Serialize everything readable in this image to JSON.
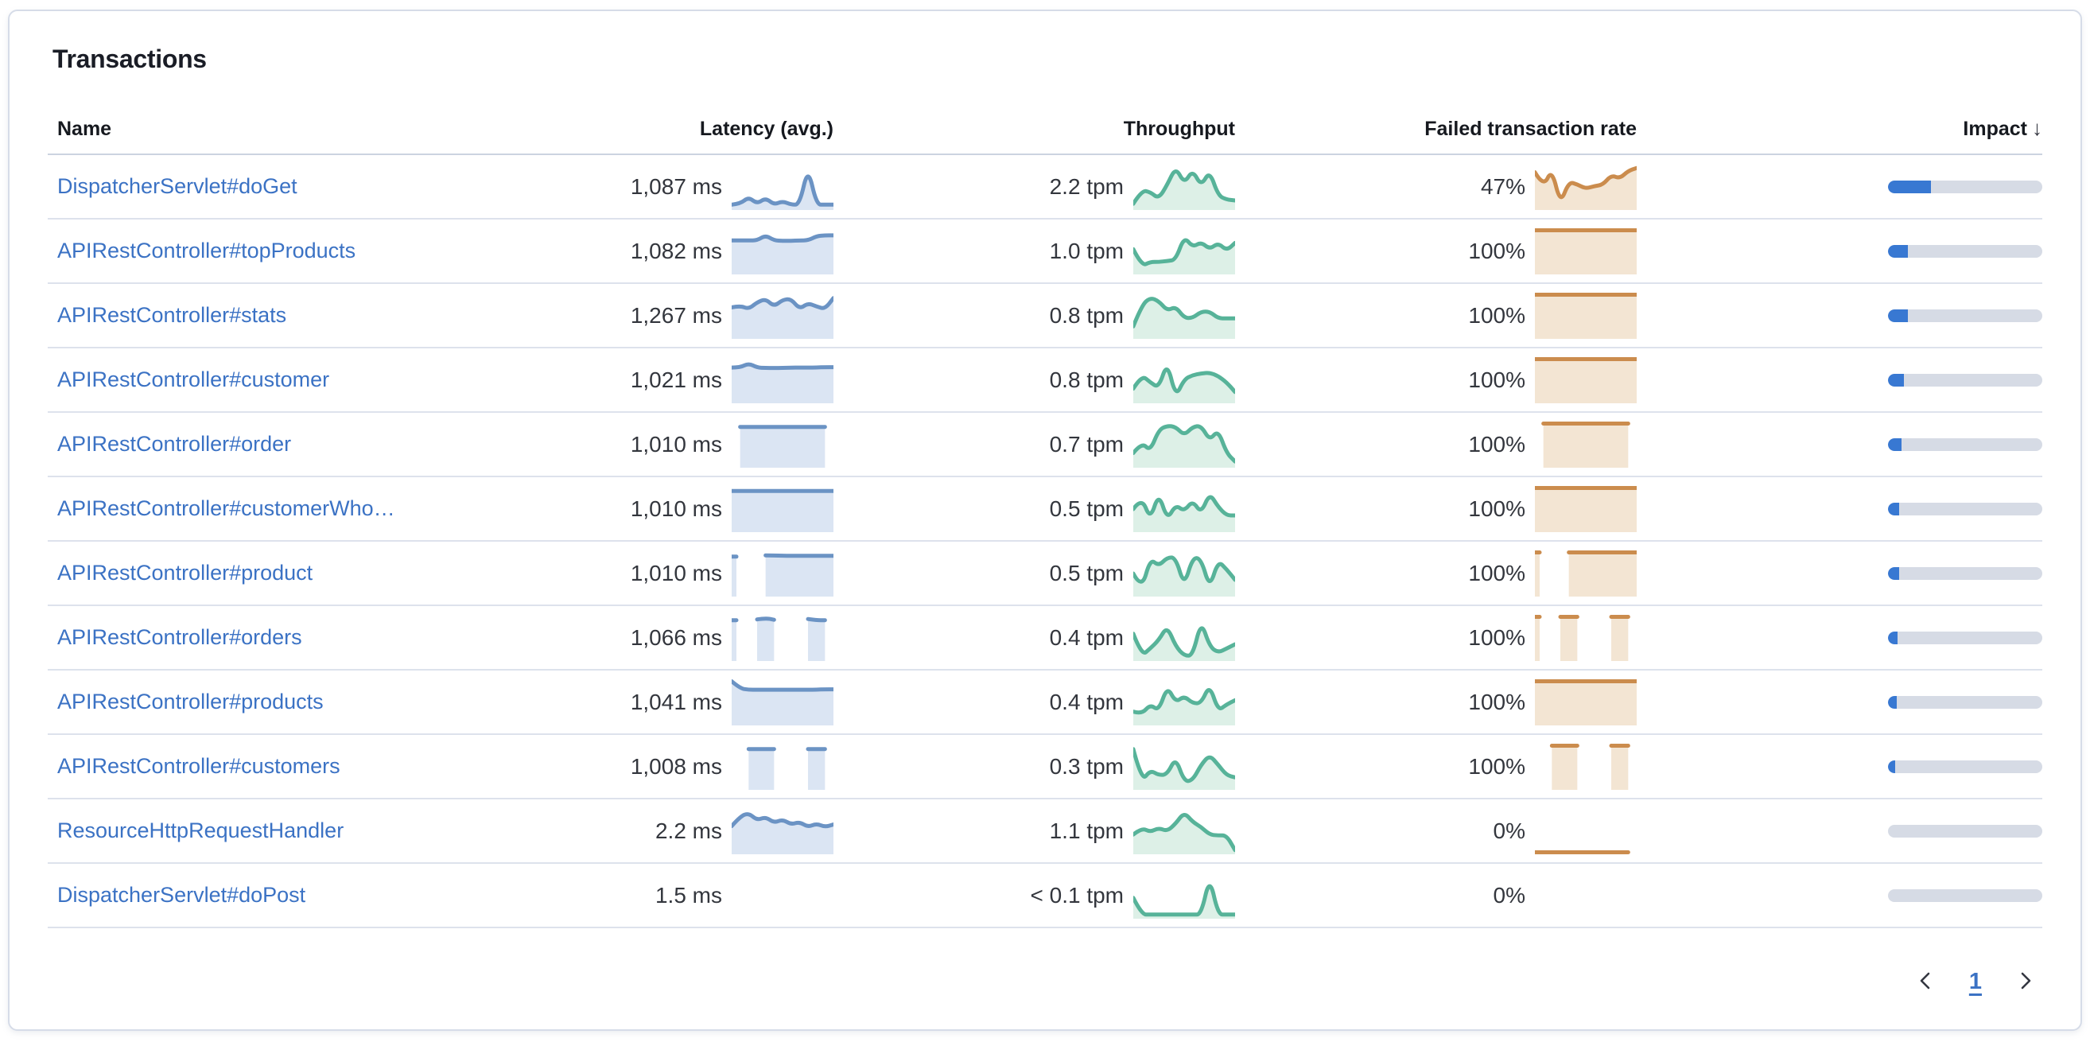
{
  "panel": {
    "title": "Transactions"
  },
  "table": {
    "columns": [
      "Name",
      "Latency (avg.)",
      "Throughput",
      "Failed transaction rate",
      "Impact"
    ],
    "sort": {
      "column": "Impact",
      "direction": "desc",
      "icon": "↓"
    }
  },
  "colors": {
    "link": "#3b72c4",
    "latency_line": "#6b93c4",
    "latency_fill": "#dbe5f3",
    "throughput_line": "#57b399",
    "throughput_fill": "#ddf0e7",
    "failed_line": "#cb8c4d",
    "failed_fill": "#f3e5d3",
    "impact_fill": "#3878d2",
    "impact_track": "#d6dbe5",
    "divider": "#dde2ec"
  },
  "rows": [
    {
      "name": "DispatcherServlet#doGet",
      "latency": "1,087 ms",
      "throughput": "2.2 tpm",
      "failed_rate": "47%",
      "impact_pct": 28,
      "latency_spark": [
        0.08,
        0.1,
        0.26,
        0.1,
        0.24,
        0.08,
        0.16,
        0.08,
        0.08,
        0.97,
        0.08,
        0.08,
        0.08
      ],
      "throughput_spark": [
        0.1,
        0.42,
        0.38,
        0.22,
        0.55,
        0.97,
        0.58,
        0.9,
        0.52,
        0.88,
        0.3,
        0.2,
        0.18
      ],
      "failed_spark": [
        0.85,
        0.5,
        0.92,
        0.1,
        0.62,
        0.56,
        0.46,
        0.52,
        0.55,
        0.78,
        0.7,
        0.88,
        0.95
      ]
    },
    {
      "name": "APIRestController#topProducts",
      "latency": "1,082 ms",
      "throughput": "1.0 tpm",
      "failed_rate": "100%",
      "impact_pct": 13,
      "latency_spark": [
        0.76,
        0.76,
        0.76,
        0.76,
        0.88,
        0.76,
        0.75,
        0.75,
        0.76,
        0.76,
        0.86,
        0.88,
        0.88
      ],
      "throughput_spark": [
        0.55,
        0.15,
        0.25,
        0.25,
        0.27,
        0.3,
        0.85,
        0.6,
        0.72,
        0.55,
        0.7,
        0.52,
        0.7
      ],
      "failed_spark": [
        1,
        1,
        1,
        1,
        1,
        1,
        1,
        1,
        1,
        1,
        1,
        1,
        1
      ]
    },
    {
      "name": "APIRestController#stats",
      "latency": "1,267 ms",
      "throughput": "0.8 tpm",
      "failed_rate": "100%",
      "impact_pct": 13,
      "latency_spark": [
        0.7,
        0.74,
        0.66,
        0.82,
        0.9,
        0.72,
        0.88,
        0.9,
        0.66,
        0.8,
        0.72,
        0.66,
        0.92
      ],
      "throughput_spark": [
        0.25,
        0.75,
        0.93,
        0.85,
        0.62,
        0.72,
        0.45,
        0.45,
        0.6,
        0.6,
        0.44,
        0.44,
        0.44
      ],
      "failed_spark": [
        1,
        1,
        1,
        1,
        1,
        1,
        1,
        1,
        1,
        1,
        1,
        1,
        1
      ]
    },
    {
      "name": "APIRestController#customer",
      "latency": "1,021 ms",
      "throughput": "0.8 tpm",
      "failed_rate": "100%",
      "impact_pct": 10.5,
      "latency_spark": [
        0.8,
        0.8,
        0.9,
        0.8,
        0.79,
        0.79,
        0.79,
        0.8,
        0.8,
        0.8,
        0.8,
        0.81,
        0.81
      ],
      "throughput_spark": [
        0.3,
        0.62,
        0.45,
        0.32,
        0.93,
        0.1,
        0.52,
        0.62,
        0.66,
        0.68,
        0.6,
        0.45,
        0.22
      ],
      "failed_spark": [
        1,
        1,
        1,
        1,
        1,
        1,
        1,
        1,
        1,
        1,
        1,
        1,
        1
      ]
    },
    {
      "name": "APIRestController#order",
      "latency": "1,010 ms",
      "throughput": "0.7 tpm",
      "failed_rate": "100%",
      "impact_pct": 9,
      "latency_spark": [
        null,
        0.92,
        0.92,
        0.92,
        0.92,
        0.92,
        0.92,
        0.92,
        0.92,
        0.92,
        0.92,
        0.92,
        null
      ],
      "throughput_spark": [
        0.3,
        0.55,
        0.35,
        0.85,
        0.95,
        0.92,
        0.72,
        0.92,
        0.95,
        0.6,
        0.85,
        0.3,
        0.1
      ],
      "failed_spark": [
        null,
        1,
        1,
        1,
        1,
        1,
        1,
        1,
        1,
        1,
        1,
        1,
        null
      ]
    },
    {
      "name": "APIRestController#customerWho…",
      "latency": "1,010 ms",
      "throughput": "0.5 tpm",
      "failed_rate": "100%",
      "impact_pct": 7,
      "latency_spark": [
        0.93,
        0.93,
        0.93,
        0.93,
        0.93,
        0.93,
        0.93,
        0.93,
        0.93,
        0.93,
        0.93,
        0.93,
        0.93
      ],
      "throughput_spark": [
        0.5,
        0.78,
        0.25,
        0.88,
        0.25,
        0.6,
        0.45,
        0.7,
        0.4,
        0.88,
        0.55,
        0.35,
        0.35
      ],
      "failed_spark": [
        1,
        1,
        1,
        1,
        1,
        1,
        1,
        1,
        1,
        1,
        1,
        1,
        1
      ]
    },
    {
      "name": "APIRestController#product",
      "latency": "1,010 ms",
      "throughput": "0.5 tpm",
      "failed_rate": "100%",
      "impact_pct": 7,
      "latency_spark": [
        0.9,
        null,
        null,
        null,
        0.93,
        0.93,
        0.92,
        0.92,
        0.92,
        0.92,
        0.92,
        0.92,
        0.92
      ],
      "throughput_spark": [
        0.5,
        0.12,
        0.85,
        0.68,
        0.88,
        0.88,
        0.2,
        0.88,
        0.85,
        0.15,
        0.8,
        0.6,
        0.35
      ],
      "failed_spark": [
        1,
        null,
        null,
        null,
        1,
        1,
        1,
        1,
        1,
        1,
        1,
        1,
        1
      ]
    },
    {
      "name": "APIRestController#orders",
      "latency": "1,066 ms",
      "throughput": "0.4 tpm",
      "failed_rate": "100%",
      "impact_pct": 6,
      "latency_spark": [
        0.92,
        null,
        null,
        0.94,
        0.97,
        0.93,
        null,
        null,
        null,
        0.95,
        0.92,
        0.92,
        null
      ],
      "throughput_spark": [
        0.6,
        0.08,
        0.25,
        0.45,
        0.78,
        0.3,
        0.08,
        0.08,
        0.9,
        0.3,
        0.15,
        0.25,
        0.35
      ],
      "failed_spark": [
        1,
        null,
        null,
        1,
        1,
        1,
        null,
        null,
        null,
        1,
        1,
        1,
        null
      ]
    },
    {
      "name": "APIRestController#products",
      "latency": "1,041 ms",
      "throughput": "0.4 tpm",
      "failed_rate": "100%",
      "impact_pct": 5.5,
      "latency_spark": [
        1.0,
        0.83,
        0.8,
        0.8,
        0.8,
        0.8,
        0.8,
        0.8,
        0.8,
        0.8,
        0.8,
        0.81,
        0.81
      ],
      "throughput_spark": [
        0.28,
        0.22,
        0.45,
        0.3,
        0.88,
        0.5,
        0.65,
        0.48,
        0.48,
        0.92,
        0.3,
        0.45,
        0.55
      ],
      "failed_spark": [
        1,
        1,
        1,
        1,
        1,
        1,
        1,
        1,
        1,
        1,
        1,
        1,
        1
      ]
    },
    {
      "name": "APIRestController#customers",
      "latency": "1,008 ms",
      "throughput": "0.3 tpm",
      "failed_rate": "100%",
      "impact_pct": 4.5,
      "latency_spark": [
        null,
        null,
        0.92,
        0.92,
        0.92,
        0.92,
        null,
        null,
        null,
        0.92,
        0.92,
        0.92,
        null
      ],
      "throughput_spark": [
        0.92,
        0.15,
        0.42,
        0.3,
        0.32,
        0.72,
        0.15,
        0.18,
        0.55,
        0.78,
        0.55,
        0.3,
        0.25
      ],
      "failed_spark": [
        null,
        null,
        1,
        1,
        1,
        1,
        null,
        null,
        null,
        1,
        1,
        1,
        null
      ]
    },
    {
      "name": "ResourceHttpRequestHandler",
      "latency": "2.2 ms",
      "throughput": "1.1 tpm",
      "failed_rate": "0%",
      "impact_pct": 0,
      "latency_spark": [
        0.62,
        0.85,
        0.93,
        0.76,
        0.84,
        0.7,
        0.78,
        0.66,
        0.72,
        0.6,
        0.68,
        0.6,
        0.66
      ],
      "throughput_spark": [
        0.42,
        0.58,
        0.48,
        0.58,
        0.5,
        0.68,
        0.95,
        0.72,
        0.6,
        0.42,
        0.4,
        0.4,
        0.05
      ],
      "failed_spark": [
        0,
        0,
        0,
        0,
        0,
        0,
        0,
        0,
        0,
        0,
        0,
        0,
        null
      ]
    },
    {
      "name": "DispatcherServlet#doPost",
      "latency": "1.5 ms",
      "throughput": "< 0.1 tpm",
      "failed_rate": "0%",
      "impact_pct": 0,
      "latency_spark": [],
      "throughput_spark": [
        0.45,
        0.05,
        0.05,
        0.05,
        0.05,
        0.05,
        0.05,
        0.05,
        0.05,
        0.95,
        0.05,
        0.05,
        0.05
      ],
      "failed_spark": []
    }
  ],
  "pagination": {
    "current_page": "1",
    "prev_icon": "chevron-left",
    "next_icon": "chevron-right"
  }
}
